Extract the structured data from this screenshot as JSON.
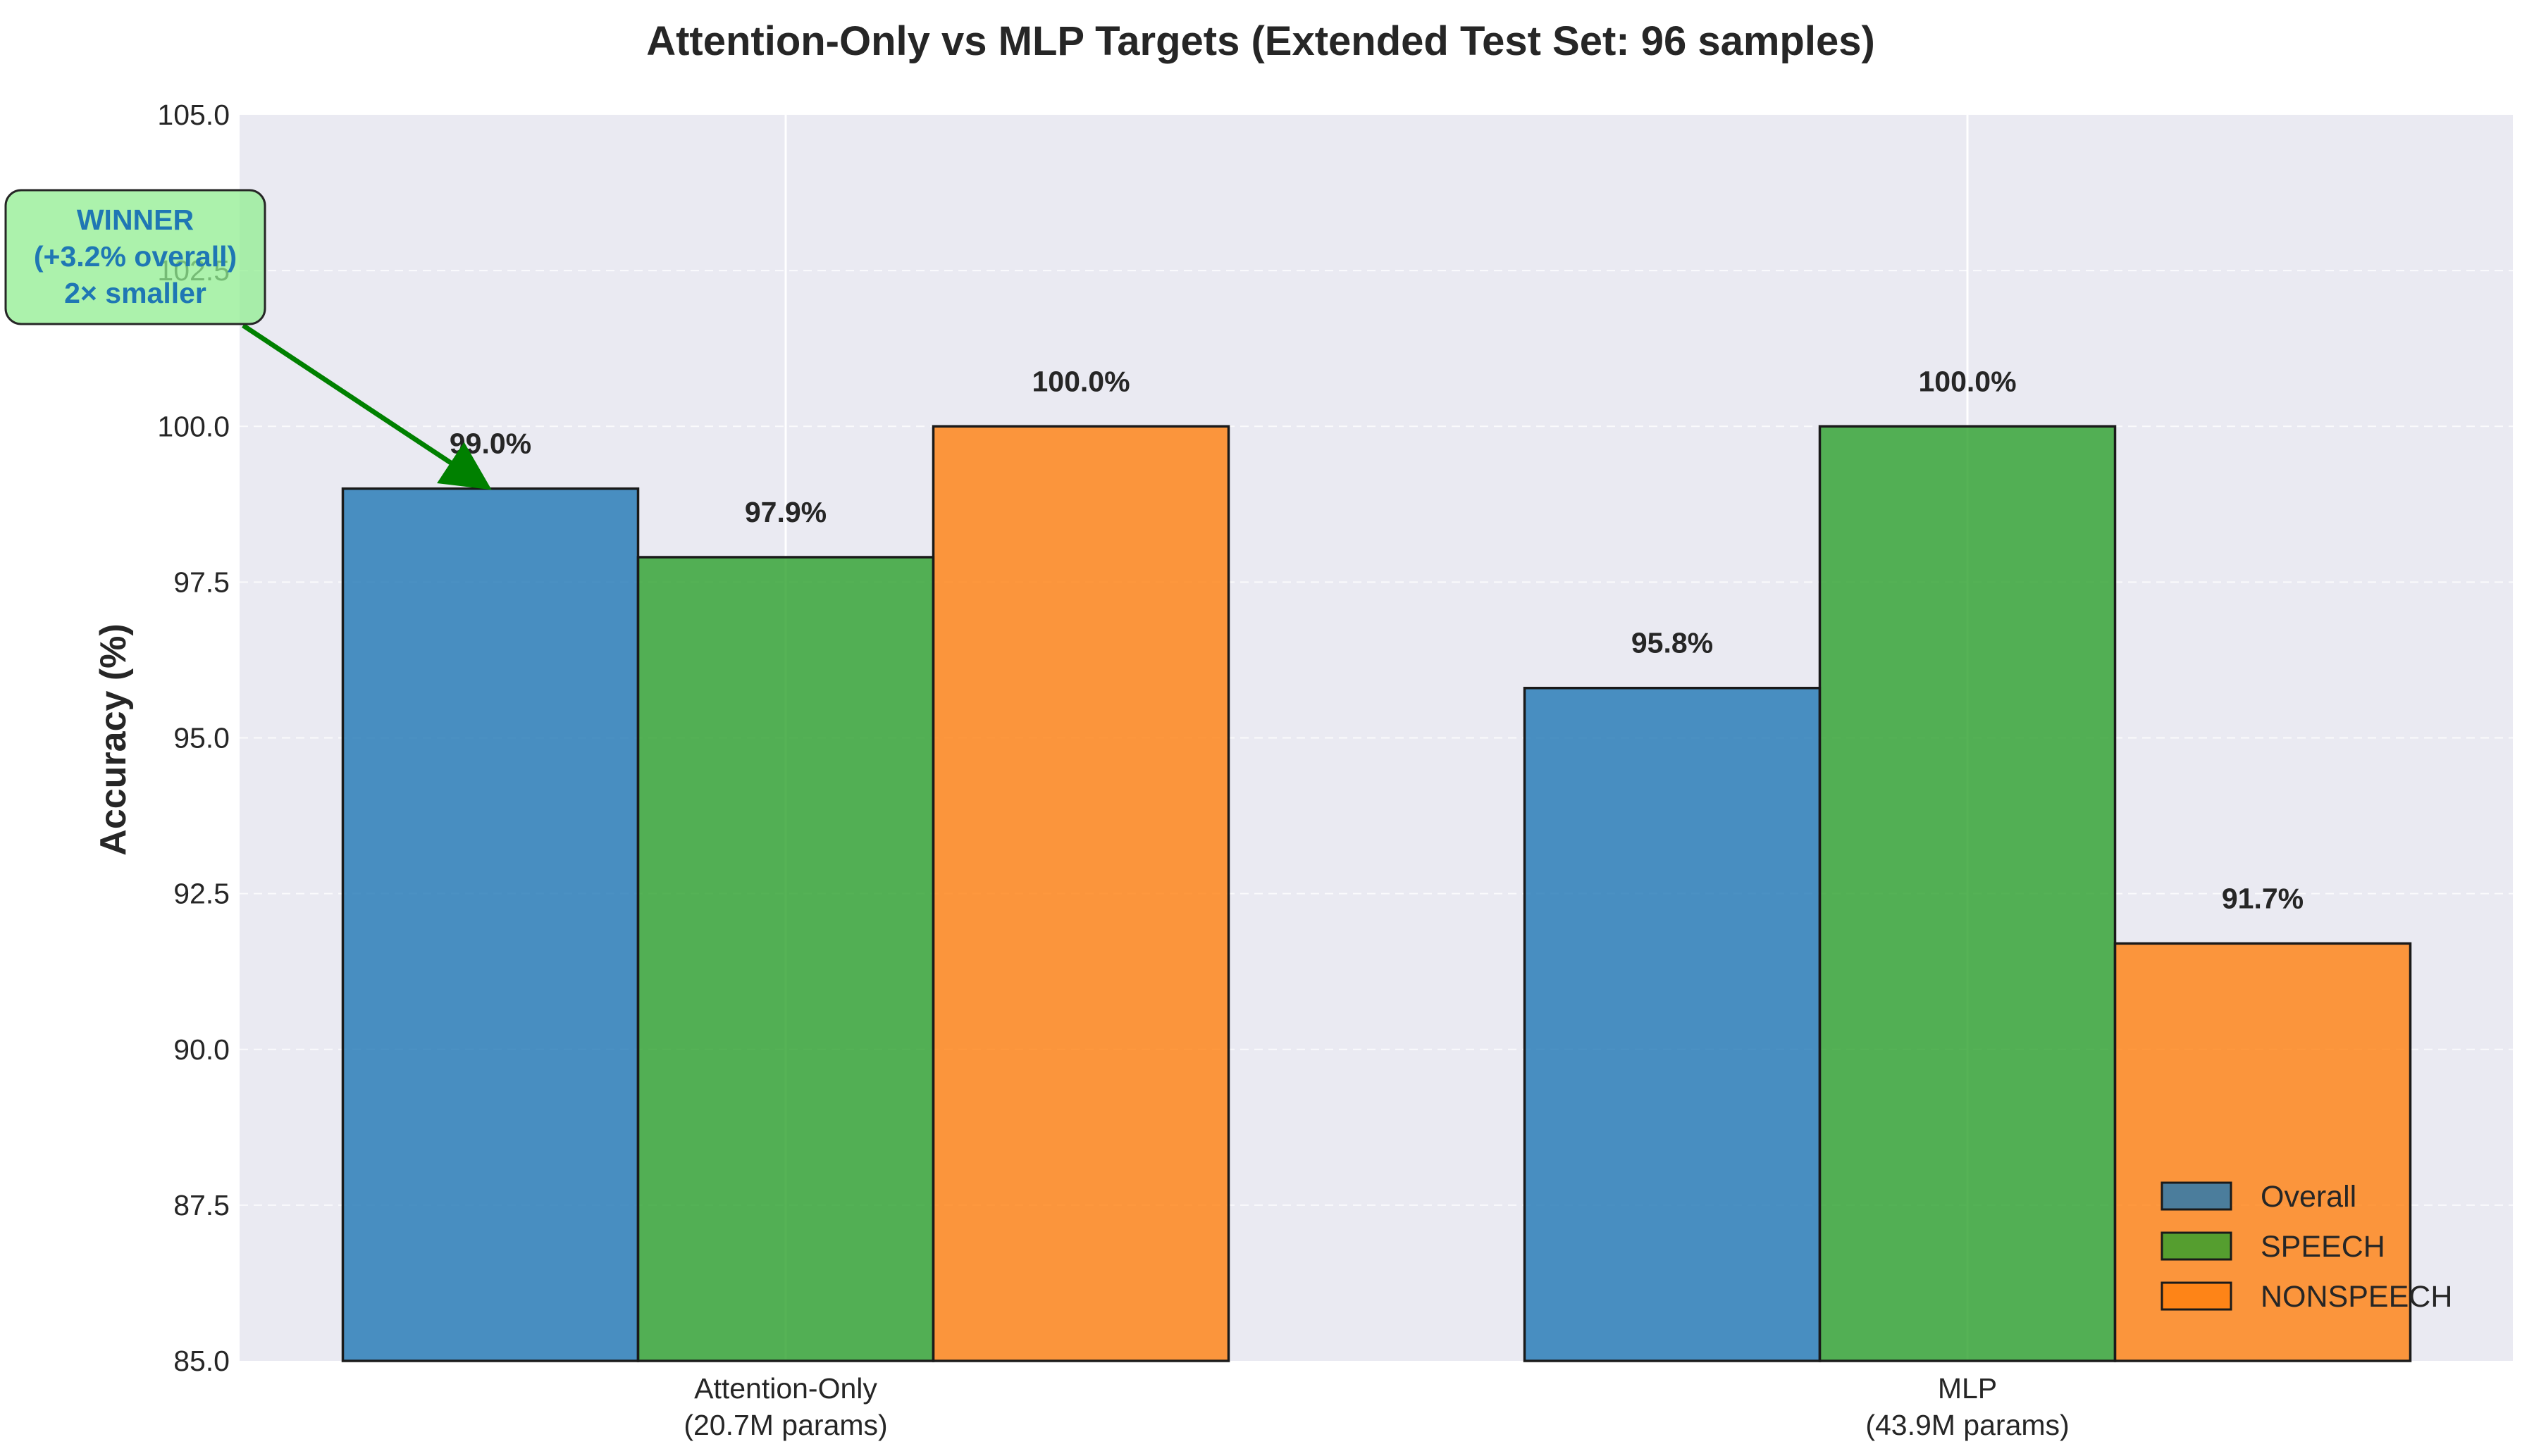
{
  "chart_data": {
    "type": "bar",
    "title": "Attention-Only vs MLP Targets (Extended Test Set: 96 samples)",
    "xlabel": "",
    "ylabel": "Accuracy (%)",
    "ylim": [
      85,
      105
    ],
    "yticks": [
      "85.0",
      "87.5",
      "90.0",
      "92.5",
      "95.0",
      "97.5",
      "100.0",
      "102.5",
      "105.0"
    ],
    "grid": true,
    "legend_position": "lower-right",
    "categories": [
      [
        "Attention-Only",
        "(20.7M params)"
      ],
      [
        "MLP",
        "(43.9M params)"
      ]
    ],
    "series": [
      {
        "name": "Overall",
        "color": "#1f77b4",
        "values": [
          99.0,
          95.8
        ],
        "labels": [
          "99.0%",
          "95.8%"
        ]
      },
      {
        "name": "SPEECH",
        "color": "#2ca02c",
        "values": [
          97.9,
          100.0
        ],
        "labels": [
          "97.9%",
          "100.0%"
        ]
      },
      {
        "name": "NONSPEECH",
        "color": "#ff7f0e",
        "values": [
          100.0,
          91.7
        ],
        "labels": [
          "100.0%",
          "91.7%"
        ]
      }
    ],
    "annotation": {
      "lines": [
        "WINNER",
        "(+3.2% overall)",
        "2× smaller"
      ],
      "target_category": 0,
      "target_series": 0,
      "box_color": "#90ee90",
      "arrow_color": "#008000",
      "text_color": "#1f77b4"
    }
  }
}
